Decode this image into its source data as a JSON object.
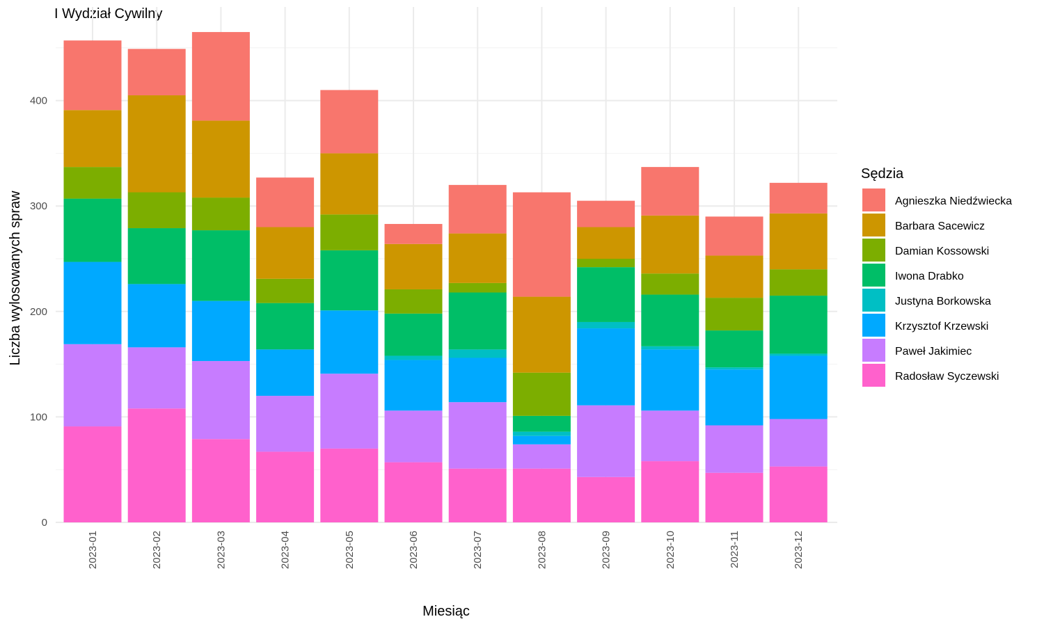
{
  "chart_data": {
    "type": "bar",
    "stacked": true,
    "title": "I Wydział Cywilny",
    "xlabel": "Miesiąc",
    "ylabel": "Liczba wylosowanych spraw",
    "ylim": [
      0,
      480
    ],
    "yticks": [
      0,
      100,
      200,
      300,
      400
    ],
    "grid": true,
    "legend_title": "Sędzia",
    "legend_position": "right",
    "categories": [
      "2023-01",
      "2023-02",
      "2023-03",
      "2023-04",
      "2023-05",
      "2023-06",
      "2023-07",
      "2023-08",
      "2023-09",
      "2023-10",
      "2023-11",
      "2023-12"
    ],
    "series": [
      {
        "name": "Agnieszka Niedźwiecka",
        "color": "#F8766D",
        "values": [
          66,
          44,
          84,
          47,
          60,
          19,
          46,
          99,
          25,
          46,
          37,
          29
        ]
      },
      {
        "name": "Barbara Sacewicz",
        "color": "#CD9600",
        "values": [
          54,
          92,
          73,
          49,
          58,
          43,
          47,
          72,
          30,
          55,
          40,
          53
        ]
      },
      {
        "name": "Damian Kossowski",
        "color": "#7CAE00",
        "values": [
          30,
          34,
          31,
          23,
          34,
          23,
          9,
          41,
          8,
          20,
          31,
          25
        ]
      },
      {
        "name": "Iwona Drabko",
        "color": "#00BE67",
        "values": [
          60,
          53,
          67,
          44,
          57,
          40,
          54,
          15,
          52,
          49,
          35,
          55
        ]
      },
      {
        "name": "Justyna Borkowska",
        "color": "#00BFC4",
        "values": [
          0,
          0,
          0,
          0,
          0,
          4,
          8,
          4,
          6,
          3,
          2,
          2
        ]
      },
      {
        "name": "Krzysztof Krzewski",
        "color": "#00A9FF",
        "values": [
          78,
          60,
          57,
          44,
          60,
          48,
          42,
          8,
          73,
          58,
          53,
          60
        ]
      },
      {
        "name": "Paweł Jakimiec",
        "color": "#C77CFF",
        "values": [
          78,
          58,
          74,
          53,
          71,
          49,
          63,
          23,
          68,
          48,
          45,
          45
        ]
      },
      {
        "name": "Radosław Syczewski",
        "color": "#FF61CC",
        "values": [
          91,
          108,
          79,
          67,
          70,
          57,
          51,
          51,
          43,
          58,
          47,
          53
        ]
      }
    ]
  }
}
